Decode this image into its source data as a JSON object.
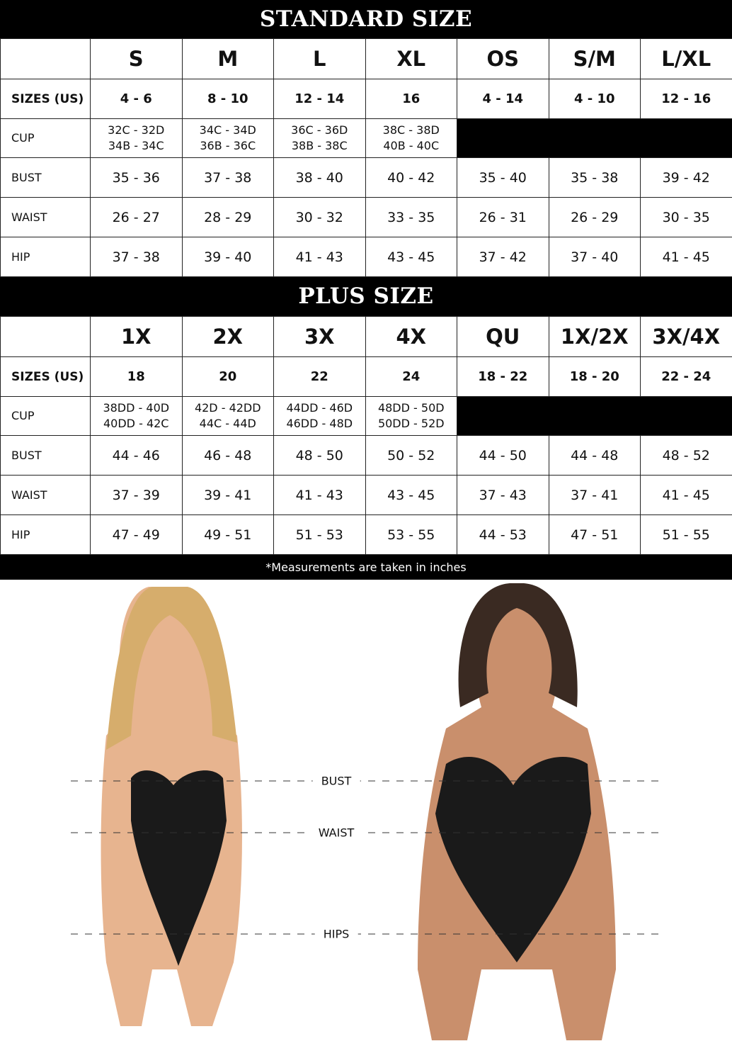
{
  "standard": {
    "title": "STANDARD SIZE",
    "headers": [
      "",
      "S",
      "M",
      "L",
      "XL",
      "OS",
      "S/M",
      "L/XL"
    ],
    "rows": [
      {
        "label": "SIZES (US)",
        "type": "sizes",
        "values": [
          "4 - 6",
          "8 - 10",
          "12 - 14",
          "16",
          "4 - 14",
          "4 - 10",
          "12 - 16"
        ]
      },
      {
        "label": "CUP",
        "type": "cup",
        "values": [
          [
            "32C - 32D",
            "34B - 34C"
          ],
          [
            "34C - 34D",
            "36B - 36C"
          ],
          [
            "36C - 36D",
            "38B - 38C"
          ],
          [
            "38C - 38D",
            "40B - 40C"
          ]
        ]
      },
      {
        "label": "BUST",
        "type": "m",
        "values": [
          "35 - 36",
          "37 - 38",
          "38 - 40",
          "40 - 42",
          "35 - 40",
          "35 - 38",
          "39 - 42"
        ]
      },
      {
        "label": "WAIST",
        "type": "m",
        "values": [
          "26 - 27",
          "28 - 29",
          "30 - 32",
          "33 - 35",
          "26 - 31",
          "26 - 29",
          "30 - 35"
        ]
      },
      {
        "label": "HIP",
        "type": "m",
        "values": [
          "37 - 38",
          "39 - 40",
          "41 - 43",
          "43 - 45",
          "37 - 42",
          "37 - 40",
          "41 - 45"
        ]
      }
    ]
  },
  "plus": {
    "title": "PLUS SIZE",
    "headers": [
      "",
      "1X",
      "2X",
      "3X",
      "4X",
      "QU",
      "1X/2X",
      "3X/4X"
    ],
    "rows": [
      {
        "label": "SIZES (US)",
        "type": "sizes",
        "values": [
          "18",
          "20",
          "22",
          "24",
          "18 - 22",
          "18 - 20",
          "22 - 24"
        ]
      },
      {
        "label": "CUP",
        "type": "cup",
        "values": [
          [
            "38DD - 40D",
            "40DD - 42C"
          ],
          [
            "42D - 42DD",
            "44C - 44D"
          ],
          [
            "44DD - 46D",
            "46DD - 48D"
          ],
          [
            "48DD - 50D",
            "50DD - 52D"
          ]
        ]
      },
      {
        "label": "BUST",
        "type": "m",
        "values": [
          "44 - 46",
          "46 - 48",
          "48 - 50",
          "50 - 52",
          "44 - 50",
          "44 - 48",
          "48 - 52"
        ]
      },
      {
        "label": "WAIST",
        "type": "m",
        "values": [
          "37 - 39",
          "39 - 41",
          "41 - 43",
          "43 - 45",
          "37 - 43",
          "37 - 41",
          "41 - 45"
        ]
      },
      {
        "label": "HIP",
        "type": "m",
        "values": [
          "47 - 49",
          "49 - 51",
          "51 - 53",
          "53 - 55",
          "44 - 53",
          "47 - 51",
          "51 - 55"
        ]
      }
    ]
  },
  "footnote": "*Measurements are taken in inches",
  "measure_labels": {
    "bust": "BUST",
    "waist": "WAIST",
    "hips": "HIPS"
  },
  "colors": {
    "band": "#000000",
    "bodysuit": "#1a1a1a"
  }
}
